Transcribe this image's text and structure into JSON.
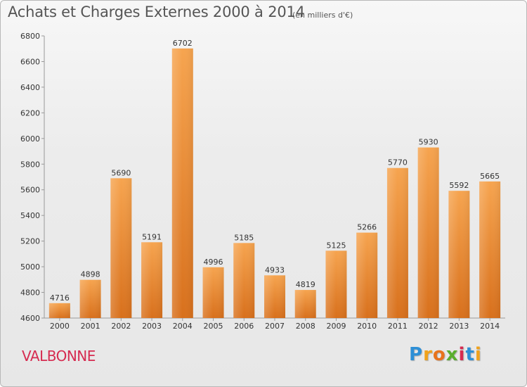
{
  "chart_data": {
    "type": "bar",
    "title": "Achats et Charges Externes 2000 à 2014",
    "subtitle": "(en milliers d'€)",
    "categories": [
      "2000",
      "2001",
      "2002",
      "2003",
      "2004",
      "2005",
      "2006",
      "2007",
      "2008",
      "2009",
      "2010",
      "2011",
      "2012",
      "2013",
      "2014"
    ],
    "values": [
      4716,
      4898,
      5690,
      5191,
      6702,
      4996,
      5185,
      4933,
      4819,
      5125,
      5266,
      5770,
      5930,
      5592,
      5665
    ],
    "ylim": [
      4600,
      6800
    ],
    "yticks": [
      4600,
      4800,
      5000,
      5200,
      5400,
      5600,
      5800,
      6000,
      6200,
      6400,
      6600,
      6800
    ],
    "grid": false,
    "bar_color_top": "#f6a44f",
    "bar_color_bottom": "#d8701c"
  },
  "commune": "VALBONNE",
  "logo": {
    "text": "Proxiti",
    "letters": [
      "P",
      "r",
      "o",
      "x",
      "i",
      "t",
      "i"
    ],
    "colors": [
      "#2d8fd6",
      "#f0a21b",
      "#e8731c",
      "#5aae2e",
      "#d62b50",
      "#2d8fd6",
      "#f0a21b"
    ]
  },
  "colors": {
    "title_text": "#555555",
    "commune_text": "#d62b50"
  }
}
